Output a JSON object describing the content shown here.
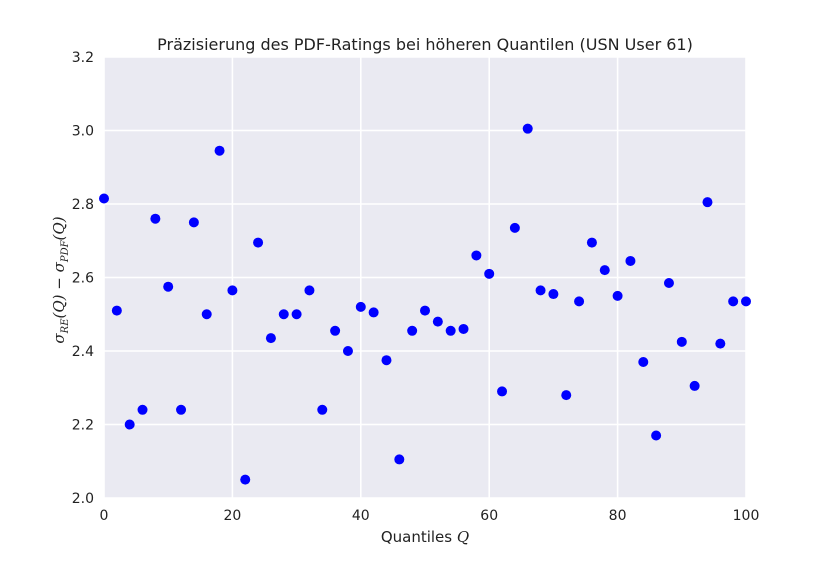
{
  "chart_data": {
    "type": "scatter",
    "title": "Präzisierung des PDF-Ratings bei höheren Quantilen (USN User 61)",
    "xlabel": {
      "text": "Quantiles ",
      "math": "Q"
    },
    "ylabel": "σ_RE(Q) − σ_PDF(Q)",
    "xlim": [
      0,
      100
    ],
    "ylim": [
      2.0,
      3.2
    ],
    "xticks": [
      0,
      20,
      40,
      60,
      80,
      100
    ],
    "yticks": [
      2.0,
      2.2,
      2.4,
      2.6,
      2.8,
      3.0,
      3.2
    ],
    "xtick_labels": [
      "0",
      "20",
      "40",
      "60",
      "80",
      "100"
    ],
    "ytick_labels": [
      "2.0",
      "2.2",
      "2.4",
      "2.6",
      "2.8",
      "3.0",
      "3.2"
    ],
    "grid": true,
    "background": "#eaeaf2",
    "marker_color": "#0000ff",
    "x": [
      0,
      2,
      4,
      6,
      8,
      10,
      12,
      14,
      16,
      18,
      20,
      22,
      24,
      26,
      28,
      30,
      32,
      34,
      36,
      38,
      40,
      42,
      44,
      46,
      48,
      50,
      52,
      54,
      56,
      58,
      60,
      62,
      64,
      66,
      68,
      70,
      72,
      74,
      76,
      78,
      80,
      82,
      84,
      86,
      88,
      90,
      92,
      94,
      96,
      98,
      100
    ],
    "y": [
      2.815,
      2.51,
      2.2,
      2.24,
      2.76,
      2.575,
      2.24,
      2.75,
      2.5,
      2.945,
      2.565,
      2.05,
      2.695,
      2.435,
      2.5,
      2.5,
      2.565,
      2.24,
      2.455,
      2.4,
      2.52,
      2.505,
      2.375,
      2.105,
      2.455,
      2.51,
      2.48,
      2.455,
      2.46,
      2.66,
      2.61,
      2.29,
      2.735,
      3.005,
      2.565,
      2.555,
      2.28,
      2.535,
      2.695,
      2.62,
      2.55,
      2.645,
      2.37,
      2.17,
      2.585,
      2.425,
      2.305,
      2.805,
      2.42,
      2.535,
      2.535
    ]
  }
}
